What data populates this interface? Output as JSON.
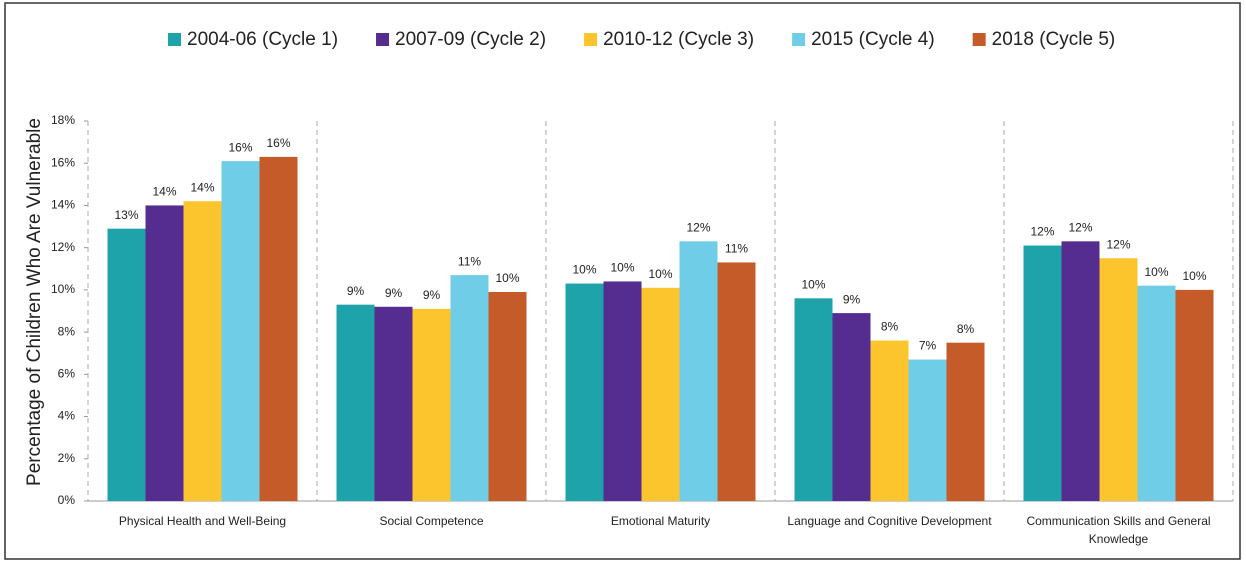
{
  "chart_data": {
    "type": "bar",
    "y_label": "Percentage of Children Who Are Vulnerable",
    "categories": [
      "Physical Health and Well-Being",
      "Social Competence",
      "Emotional Maturity",
      "Language and Cognitive Development",
      "Communication Skills and General Knowledge"
    ],
    "series": [
      {
        "name": "2004-06 (Cycle 1)",
        "color": "#1fa3ab",
        "values": [
          12.9,
          9.3,
          10.3,
          9.6,
          12.1
        ],
        "value_labels": [
          "13%",
          "9%",
          "10%",
          "10%",
          "12%"
        ]
      },
      {
        "name": "2007-09 (Cycle 2)",
        "color": "#552d91",
        "values": [
          14.0,
          9.2,
          10.4,
          8.9,
          12.3
        ],
        "value_labels": [
          "14%",
          "9%",
          "10%",
          "9%",
          "12%"
        ]
      },
      {
        "name": "2010-12 (Cycle 3)",
        "color": "#fcc52d",
        "values": [
          14.2,
          9.1,
          10.1,
          7.6,
          11.5
        ],
        "value_labels": [
          "14%",
          "9%",
          "10%",
          "8%",
          "12%"
        ]
      },
      {
        "name": "2015 (Cycle 4)",
        "color": "#6fcde8",
        "values": [
          16.1,
          10.7,
          12.3,
          6.7,
          10.2
        ],
        "value_labels": [
          "16%",
          "11%",
          "12%",
          "7%",
          "10%"
        ]
      },
      {
        "name": "2018 (Cycle 5)",
        "color": "#c55b28",
        "values": [
          16.3,
          9.9,
          11.3,
          7.5,
          10.0
        ],
        "value_labels": [
          "16%",
          "10%",
          "11%",
          "8%",
          "10%"
        ]
      }
    ],
    "ylim": [
      0,
      18
    ],
    "yticks": [
      {
        "value": 0,
        "label": "0%"
      },
      {
        "value": 2,
        "label": "2%"
      },
      {
        "value": 4,
        "label": "4%"
      },
      {
        "value": 6,
        "label": "6%"
      },
      {
        "value": 8,
        "label": "8%"
      },
      {
        "value": 10,
        "label": "10%"
      },
      {
        "value": 12,
        "label": "12%"
      },
      {
        "value": 14,
        "label": "14%"
      },
      {
        "value": 16,
        "label": "16%"
      },
      {
        "value": 18,
        "label": "18%"
      }
    ],
    "grid": false,
    "legend": "top"
  }
}
